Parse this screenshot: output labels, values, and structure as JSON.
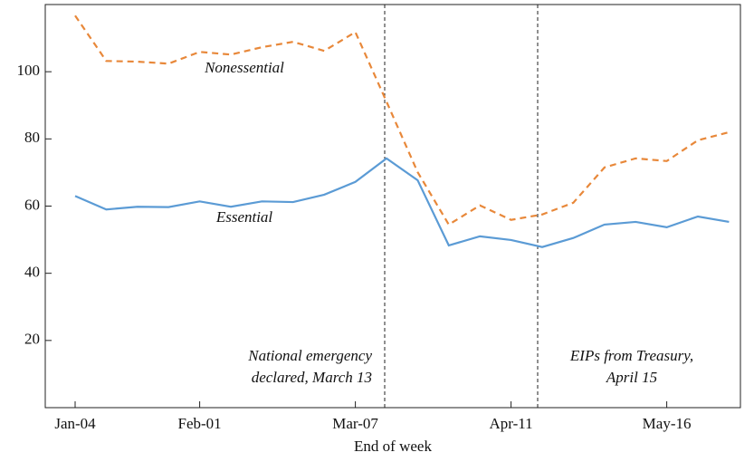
{
  "chart_data": {
    "type": "line",
    "xlabel": "End of week",
    "categories": [
      "Jan-04",
      null,
      null,
      null,
      "Feb-01",
      null,
      null,
      null,
      null,
      "Mar-07",
      null,
      null,
      null,
      null,
      "Apr-11",
      null,
      null,
      null,
      null,
      "May-16",
      null,
      null
    ],
    "ylim": [
      0,
      120
    ],
    "yticks": [
      20,
      40,
      60,
      80,
      100
    ],
    "series": [
      {
        "name": "Nonessential",
        "color": "#e8883a",
        "dash": true,
        "values": [
          116.7,
          103.2,
          103,
          102.4,
          105.9,
          105.1,
          107.3,
          108.9,
          106.2,
          111.8,
          91.1,
          70.1,
          54.5,
          60.2,
          55.9,
          57.5,
          61,
          71.5,
          74.2,
          73.4,
          79.6,
          82
        ]
      },
      {
        "name": "Essential",
        "color": "#5b9bd5",
        "dash": false,
        "values": [
          63,
          59,
          59.8,
          59.7,
          61.4,
          59.8,
          61.4,
          61.2,
          63.4,
          67.2,
          74.2,
          67.7,
          48.3,
          51,
          49.9,
          47.8,
          50.5,
          54.5,
          55.3,
          53.7,
          56.9,
          55.3
        ]
      }
    ],
    "annotations": [
      {
        "lines": [
          "National emergency",
          "declared, March 13"
        ]
      },
      {
        "lines": [
          "EIPs from Treasury,",
          "April 15"
        ]
      }
    ]
  }
}
